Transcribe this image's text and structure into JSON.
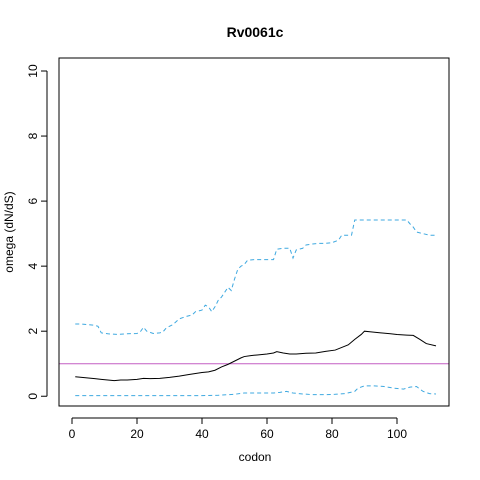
{
  "chart_data": {
    "type": "line",
    "title": "Rv0061c",
    "xlabel": "codon",
    "ylabel": "omega (dN/dS)",
    "xlim": [
      -4,
      116
    ],
    "ylim": [
      -0.3,
      10.4
    ],
    "x_ticks": [
      0,
      20,
      40,
      60,
      80,
      100
    ],
    "y_ticks": [
      0,
      2,
      4,
      6,
      8,
      10
    ],
    "reference_line": {
      "y": 1,
      "color": "#c45ec4"
    },
    "series": [
      {
        "role": "upper",
        "color": "#3fa9e0",
        "dash": true,
        "points": [
          [
            1,
            2.22
          ],
          [
            3,
            2.22
          ],
          [
            5,
            2.2
          ],
          [
            7,
            2.18
          ],
          [
            8,
            2.15
          ],
          [
            9,
            1.95
          ],
          [
            11,
            1.92
          ],
          [
            14,
            1.9
          ],
          [
            17,
            1.92
          ],
          [
            20,
            1.93
          ],
          [
            21,
            1.98
          ],
          [
            22,
            2.12
          ],
          [
            23,
            2.0
          ],
          [
            25,
            1.93
          ],
          [
            27,
            1.95
          ],
          [
            28,
            1.98
          ],
          [
            29,
            2.1
          ],
          [
            31,
            2.2
          ],
          [
            33,
            2.38
          ],
          [
            35,
            2.45
          ],
          [
            37,
            2.5
          ],
          [
            38,
            2.6
          ],
          [
            40,
            2.65
          ],
          [
            41,
            2.8
          ],
          [
            42,
            2.75
          ],
          [
            43,
            2.6
          ],
          [
            44,
            2.75
          ],
          [
            45,
            2.95
          ],
          [
            46,
            3.05
          ],
          [
            47,
            3.2
          ],
          [
            48,
            3.35
          ],
          [
            49,
            3.25
          ],
          [
            50,
            3.6
          ],
          [
            51,
            3.9
          ],
          [
            52,
            4.0
          ],
          [
            53,
            4.05
          ],
          [
            54,
            4.18
          ],
          [
            56,
            4.2
          ],
          [
            58,
            4.2
          ],
          [
            60,
            4.2
          ],
          [
            62,
            4.2
          ],
          [
            63,
            4.52
          ],
          [
            65,
            4.55
          ],
          [
            67,
            4.55
          ],
          [
            68,
            4.25
          ],
          [
            69,
            4.5
          ],
          [
            71,
            4.55
          ],
          [
            72,
            4.65
          ],
          [
            74,
            4.68
          ],
          [
            76,
            4.7
          ],
          [
            78,
            4.7
          ],
          [
            80,
            4.72
          ],
          [
            82,
            4.8
          ],
          [
            83,
            4.95
          ],
          [
            85,
            4.95
          ],
          [
            86,
            4.95
          ],
          [
            87,
            5.42
          ],
          [
            90,
            5.42
          ],
          [
            95,
            5.42
          ],
          [
            100,
            5.42
          ],
          [
            103,
            5.42
          ],
          [
            104,
            5.3
          ],
          [
            105,
            5.2
          ],
          [
            106,
            5.05
          ],
          [
            108,
            5.0
          ],
          [
            110,
            4.95
          ],
          [
            112,
            4.95
          ]
        ]
      },
      {
        "role": "estimate",
        "color": "#000000",
        "dash": false,
        "points": [
          [
            1,
            0.6
          ],
          [
            3,
            0.58
          ],
          [
            5,
            0.56
          ],
          [
            7,
            0.54
          ],
          [
            9,
            0.52
          ],
          [
            11,
            0.5
          ],
          [
            13,
            0.48
          ],
          [
            15,
            0.5
          ],
          [
            17,
            0.5
          ],
          [
            20,
            0.52
          ],
          [
            22,
            0.55
          ],
          [
            24,
            0.54
          ],
          [
            27,
            0.55
          ],
          [
            30,
            0.58
          ],
          [
            33,
            0.62
          ],
          [
            36,
            0.67
          ],
          [
            38,
            0.7
          ],
          [
            40,
            0.73
          ],
          [
            42,
            0.75
          ],
          [
            44,
            0.8
          ],
          [
            46,
            0.9
          ],
          [
            48,
            0.98
          ],
          [
            50,
            1.08
          ],
          [
            52,
            1.18
          ],
          [
            53,
            1.22
          ],
          [
            55,
            1.25
          ],
          [
            57,
            1.27
          ],
          [
            60,
            1.3
          ],
          [
            62,
            1.33
          ],
          [
            63,
            1.37
          ],
          [
            65,
            1.33
          ],
          [
            67,
            1.3
          ],
          [
            69,
            1.3
          ],
          [
            72,
            1.32
          ],
          [
            75,
            1.33
          ],
          [
            78,
            1.38
          ],
          [
            81,
            1.42
          ],
          [
            83,
            1.5
          ],
          [
            85,
            1.58
          ],
          [
            87,
            1.75
          ],
          [
            89,
            1.9
          ],
          [
            90,
            2.0
          ],
          [
            92,
            1.98
          ],
          [
            95,
            1.95
          ],
          [
            98,
            1.92
          ],
          [
            100,
            1.9
          ],
          [
            103,
            1.88
          ],
          [
            105,
            1.87
          ],
          [
            107,
            1.75
          ],
          [
            109,
            1.62
          ],
          [
            112,
            1.55
          ]
        ]
      },
      {
        "role": "lower",
        "color": "#3fa9e0",
        "dash": true,
        "points": [
          [
            1,
            0.02
          ],
          [
            10,
            0.02
          ],
          [
            20,
            0.02
          ],
          [
            30,
            0.02
          ],
          [
            40,
            0.02
          ],
          [
            45,
            0.03
          ],
          [
            50,
            0.06
          ],
          [
            53,
            0.1
          ],
          [
            58,
            0.1
          ],
          [
            62,
            0.1
          ],
          [
            64,
            0.12
          ],
          [
            66,
            0.15
          ],
          [
            68,
            0.1
          ],
          [
            71,
            0.07
          ],
          [
            74,
            0.05
          ],
          [
            78,
            0.05
          ],
          [
            81,
            0.06
          ],
          [
            84,
            0.08
          ],
          [
            87,
            0.15
          ],
          [
            88,
            0.25
          ],
          [
            90,
            0.32
          ],
          [
            93,
            0.32
          ],
          [
            96,
            0.3
          ],
          [
            99,
            0.25
          ],
          [
            102,
            0.22
          ],
          [
            104,
            0.28
          ],
          [
            106,
            0.3
          ],
          [
            108,
            0.15
          ],
          [
            110,
            0.08
          ],
          [
            112,
            0.07
          ]
        ]
      }
    ]
  }
}
